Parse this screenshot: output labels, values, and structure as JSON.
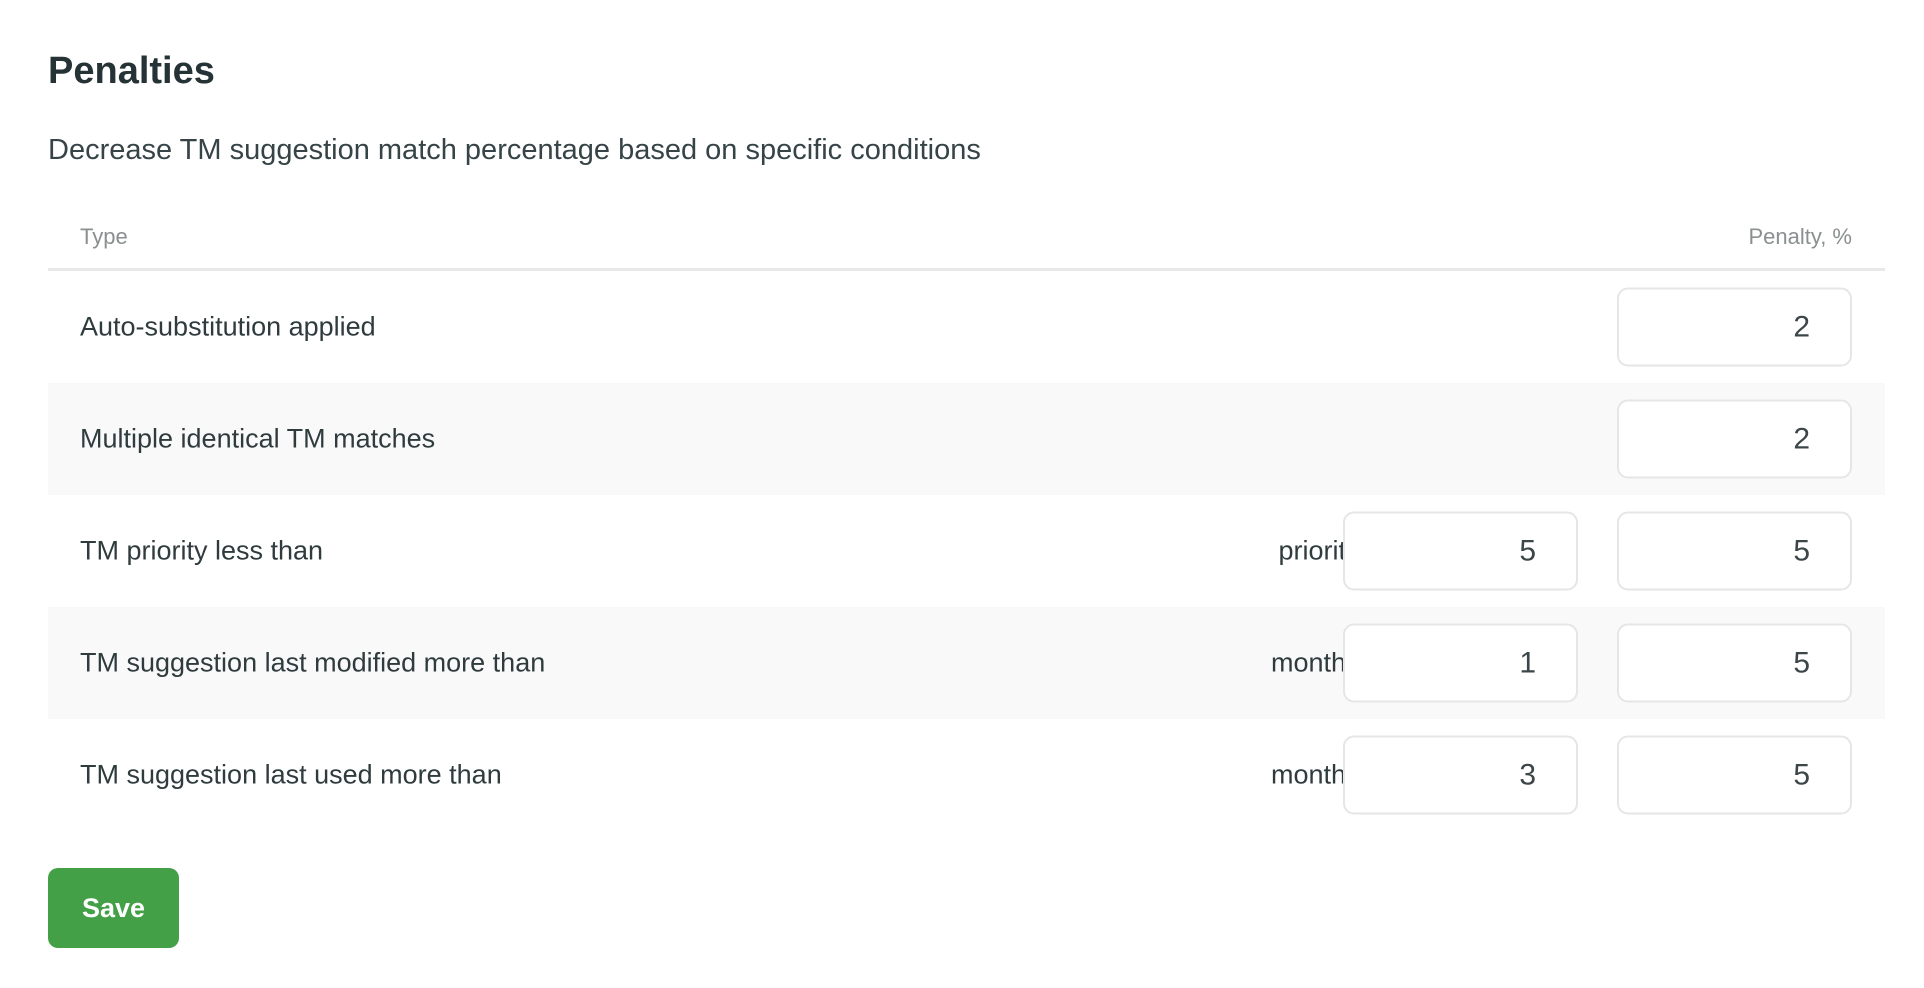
{
  "title": "Penalties",
  "subtitle": "Decrease TM suggestion match percentage based on specific conditions",
  "table": {
    "headers": {
      "type": "Type",
      "penalty": "Penalty, %"
    },
    "rows": [
      {
        "label": "Auto-substitution applied",
        "penalty": "2"
      },
      {
        "label": "Multiple identical TM matches",
        "penalty": "2"
      },
      {
        "label": "TM priority less than",
        "param_label": "priority:",
        "param_value": "5",
        "penalty": "5"
      },
      {
        "label": "TM suggestion last modified more than",
        "param_label": "months:",
        "param_value": "1",
        "penalty": "5"
      },
      {
        "label": "TM suggestion last used more than",
        "param_label": "months:",
        "param_value": "3",
        "penalty": "5"
      }
    ]
  },
  "save_label": "Save",
  "colors": {
    "accent": "#43a047",
    "row_alt": "#f9f9f9"
  }
}
